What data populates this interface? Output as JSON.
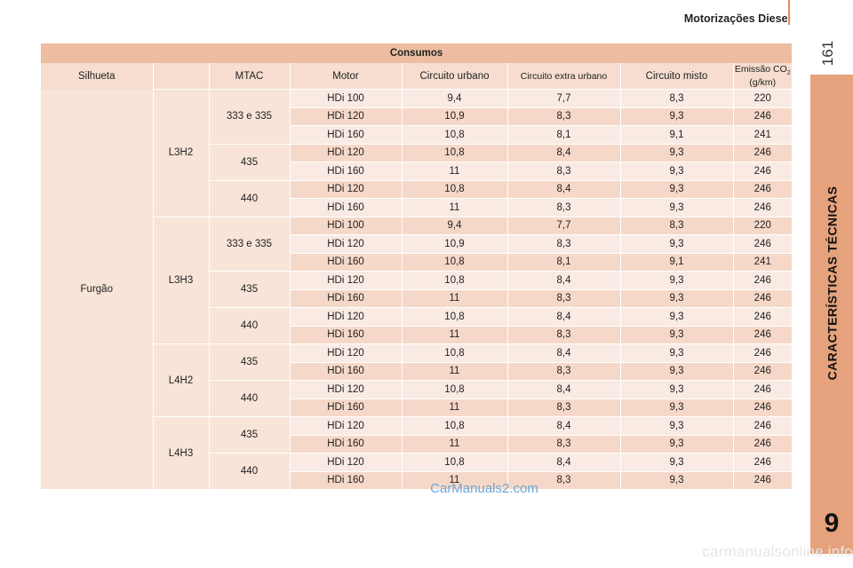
{
  "header": {
    "title": "Motorizações Diesel",
    "page_number": "161"
  },
  "side_tab": {
    "label": "CARACTERÍSTICAS TÉCNICAS",
    "chapter": "9"
  },
  "table": {
    "title": "Consumos",
    "columns": [
      "Silhueta",
      "MTAC",
      "Motor",
      "Circuito urbano",
      "Circuito extra urbano",
      "Circuito misto",
      "Emissão CO",
      "2",
      "(g/km)"
    ],
    "silhueta": "Furgão",
    "groups": [
      {
        "model": "L3H2",
        "subgroups": [
          {
            "mtac": "333 e 335",
            "rows": [
              [
                "HDi 100",
                "9,4",
                "7,7",
                "8,3",
                "220"
              ],
              [
                "HDi 120",
                "10,9",
                "8,3",
                "9,3",
                "246"
              ],
              [
                "HDi 160",
                "10,8",
                "8,1",
                "9,1",
                "241"
              ]
            ]
          },
          {
            "mtac": "435",
            "rows": [
              [
                "HDi 120",
                "10,8",
                "8,4",
                "9,3",
                "246"
              ],
              [
                "HDi 160",
                "11",
                "8,3",
                "9,3",
                "246"
              ]
            ]
          },
          {
            "mtac": "440",
            "rows": [
              [
                "HDi 120",
                "10,8",
                "8,4",
                "9,3",
                "246"
              ],
              [
                "HDi 160",
                "11",
                "8,3",
                "9,3",
                "246"
              ]
            ]
          }
        ]
      },
      {
        "model": "L3H3",
        "subgroups": [
          {
            "mtac": "333 e 335",
            "rows": [
              [
                "HDi 100",
                "9,4",
                "7,7",
                "8,3",
                "220"
              ],
              [
                "HDi 120",
                "10,9",
                "8,3",
                "9,3",
                "246"
              ],
              [
                "HDi 160",
                "10,8",
                "8,1",
                "9,1",
                "241"
              ]
            ]
          },
          {
            "mtac": "435",
            "rows": [
              [
                "HDi 120",
                "10,8",
                "8,4",
                "9,3",
                "246"
              ],
              [
                "HDi 160",
                "11",
                "8,3",
                "9,3",
                "246"
              ]
            ]
          },
          {
            "mtac": "440",
            "rows": [
              [
                "HDi 120",
                "10,8",
                "8,4",
                "9,3",
                "246"
              ],
              [
                "HDi 160",
                "11",
                "8,3",
                "9,3",
                "246"
              ]
            ]
          }
        ]
      },
      {
        "model": "L4H2",
        "subgroups": [
          {
            "mtac": "435",
            "rows": [
              [
                "HDi 120",
                "10,8",
                "8,4",
                "9,3",
                "246"
              ],
              [
                "HDi 160",
                "11",
                "8,3",
                "9,3",
                "246"
              ]
            ]
          },
          {
            "mtac": "440",
            "rows": [
              [
                "HDi 120",
                "10,8",
                "8,4",
                "9,3",
                "246"
              ],
              [
                "HDi 160",
                "11",
                "8,3",
                "9,3",
                "246"
              ]
            ]
          }
        ]
      },
      {
        "model": "L4H3",
        "subgroups": [
          {
            "mtac": "435",
            "rows": [
              [
                "HDi 120",
                "10,8",
                "8,4",
                "9,3",
                "246"
              ],
              [
                "HDi 160",
                "11",
                "8,3",
                "9,3",
                "246"
              ]
            ]
          },
          {
            "mtac": "440",
            "rows": [
              [
                "HDi 120",
                "10,8",
                "8,4",
                "9,3",
                "246"
              ],
              [
                "HDi 160",
                "11",
                "8,3",
                "9,3",
                "246"
              ]
            ]
          }
        ]
      }
    ]
  },
  "watermark": "CarManuals2.com",
  "footer_mark": "carmanualsonline.info",
  "colors": {
    "accent": "#e6a27c",
    "title_bar": "#ecbda0",
    "row_dark": "#f6d8c8",
    "row_light": "#f9ebe3"
  }
}
